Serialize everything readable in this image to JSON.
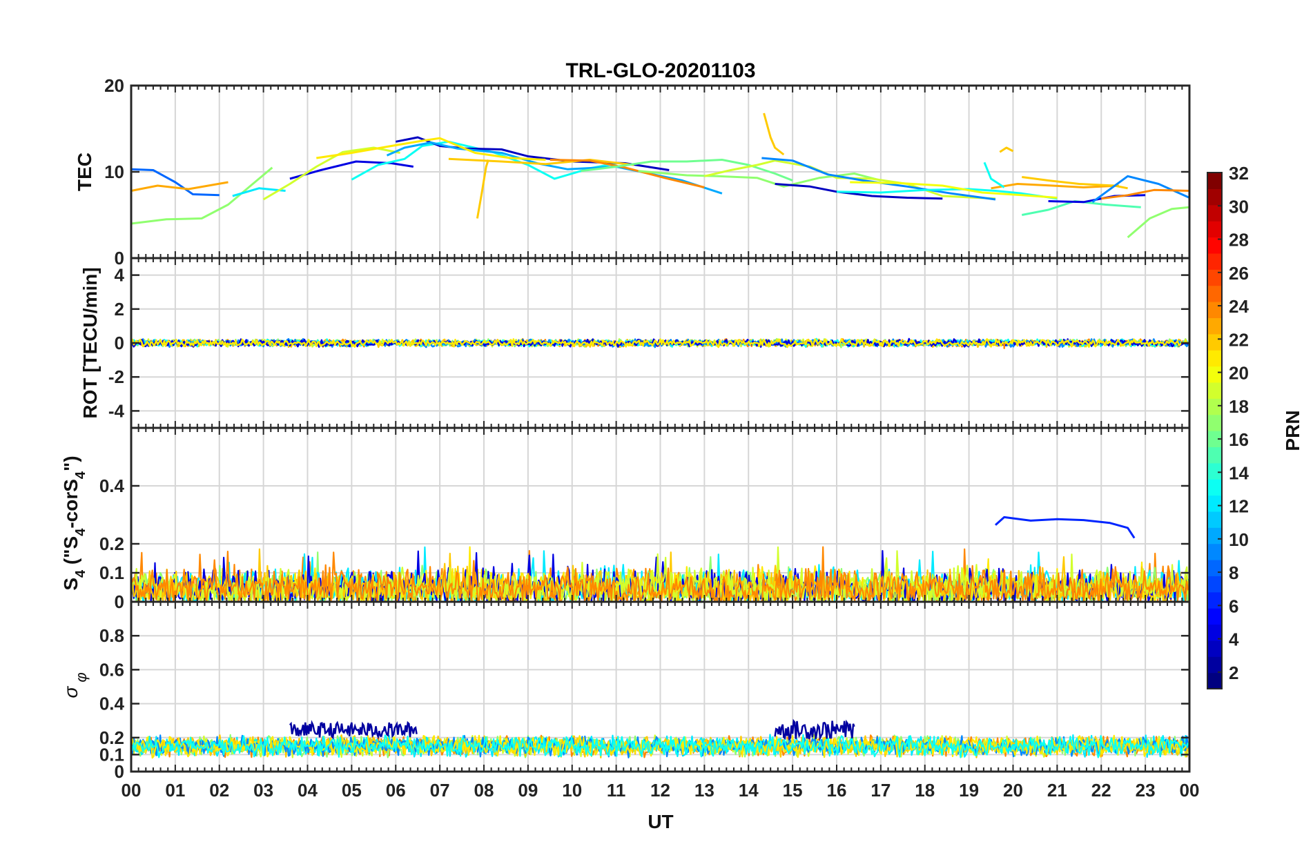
{
  "chart_data": {
    "type": "line",
    "title": "TRL-GLO-20201103",
    "xlabel": "UT",
    "xticks": [
      "00",
      "01",
      "02",
      "03",
      "04",
      "05",
      "06",
      "07",
      "08",
      "09",
      "10",
      "11",
      "12",
      "13",
      "14",
      "15",
      "16",
      "17",
      "18",
      "19",
      "20",
      "21",
      "22",
      "23",
      "00"
    ],
    "xlim": [
      0,
      24
    ],
    "colorbar": {
      "label": "PRN",
      "range": [
        1,
        32
      ],
      "ticks": [
        "2",
        "4",
        "6",
        "8",
        "10",
        "12",
        "14",
        "16",
        "18",
        "20",
        "22",
        "24",
        "26",
        "28",
        "30",
        "32"
      ]
    },
    "panels": [
      {
        "name": "tec",
        "ylabel": "TEC",
        "ylim": [
          0,
          20
        ],
        "ytick_values": [
          0,
          10,
          20
        ],
        "ytick_labels": [
          "0",
          "10",
          "20"
        ],
        "series": [
          {
            "prn": 8,
            "points": [
              [
                0.0,
                10.3
              ],
              [
                0.5,
                10.2
              ],
              [
                1.0,
                8.8
              ],
              [
                1.4,
                7.4
              ],
              [
                2.0,
                7.3
              ]
            ]
          },
          {
            "prn": 23,
            "points": [
              [
                0.0,
                7.8
              ],
              [
                0.6,
                8.4
              ],
              [
                1.3,
                8.0
              ],
              [
                2.2,
                8.8
              ]
            ]
          },
          {
            "prn": 17,
            "points": [
              [
                0.0,
                4.0
              ],
              [
                0.8,
                4.5
              ],
              [
                1.6,
                4.6
              ],
              [
                2.2,
                6.2
              ],
              [
                3.2,
                10.5
              ]
            ]
          },
          {
            "prn": 12,
            "points": [
              [
                2.3,
                7.2
              ],
              [
                2.9,
                8.1
              ],
              [
                3.5,
                7.8
              ]
            ]
          },
          {
            "prn": 4,
            "points": [
              [
                3.6,
                9.2
              ],
              [
                4.3,
                10.2
              ],
              [
                5.1,
                11.2
              ],
              [
                5.9,
                11.0
              ],
              [
                6.4,
                10.6
              ]
            ]
          },
          {
            "prn": 19,
            "points": [
              [
                3.0,
                6.8
              ],
              [
                3.6,
                8.6
              ],
              [
                4.2,
                10.6
              ],
              [
                4.8,
                12.3
              ],
              [
                5.5,
                12.8
              ],
              [
                6.1,
                12.2
              ]
            ]
          },
          {
            "prn": 13,
            "points": [
              [
                5.0,
                9.1
              ],
              [
                5.6,
                10.8
              ],
              [
                6.2,
                11.5
              ],
              [
                6.6,
                13.0
              ],
              [
                7.2,
                13.5
              ],
              [
                8.2,
                12.3
              ],
              [
                9.0,
                10.8
              ],
              [
                9.6,
                9.2
              ],
              [
                10.4,
                10.4
              ],
              [
                11.0,
                11.0
              ]
            ]
          },
          {
            "prn": 3,
            "points": [
              [
                6.0,
                13.5
              ],
              [
                6.5,
                14.0
              ],
              [
                7.0,
                13.0
              ],
              [
                7.6,
                12.7
              ],
              [
                8.4,
                12.6
              ],
              [
                9.0,
                11.8
              ],
              [
                10.0,
                11.2
              ],
              [
                11.2,
                11.0
              ],
              [
                12.2,
                10.2
              ]
            ]
          },
          {
            "prn": 10,
            "points": [
              [
                5.8,
                11.9
              ],
              [
                6.2,
                12.8
              ],
              [
                6.8,
                13.4
              ],
              [
                7.4,
                12.7
              ],
              [
                8.4,
                12.2
              ],
              [
                9.2,
                11.0
              ],
              [
                9.9,
                10.3
              ],
              [
                11.0,
                10.6
              ],
              [
                12.5,
                9.0
              ],
              [
                13.4,
                7.5
              ]
            ]
          },
          {
            "prn": 21,
            "points": [
              [
                4.2,
                11.6
              ],
              [
                5.0,
                12.2
              ],
              [
                5.9,
                13.0
              ],
              [
                6.6,
                13.6
              ],
              [
                7.0,
                13.9
              ],
              [
                7.8,
                12.2
              ],
              [
                8.6,
                11.6
              ],
              [
                9.4,
                11.4
              ]
            ]
          },
          {
            "prn": 22,
            "points": [
              [
                7.2,
                11.5
              ],
              [
                8.4,
                11.2
              ],
              [
                9.4,
                10.9
              ],
              [
                10.4,
                11.4
              ],
              [
                11.4,
                10.8
              ]
            ]
          },
          {
            "prn": 24,
            "points": [
              [
                9.5,
                11.4
              ],
              [
                10.4,
                11.3
              ],
              [
                11.2,
                10.5
              ],
              [
                12.1,
                9.3
              ],
              [
                13.0,
                8.2
              ]
            ]
          },
          {
            "prn": 16,
            "points": [
              [
                10.2,
                10.1
              ],
              [
                11.0,
                10.6
              ],
              [
                11.8,
                11.2
              ],
              [
                12.6,
                11.2
              ],
              [
                13.4,
                11.4
              ],
              [
                14.0,
                10.8
              ],
              [
                14.6,
                9.8
              ],
              [
                15.0,
                9.0
              ]
            ]
          },
          {
            "prn": 17,
            "points": [
              [
                11.5,
                10.1
              ],
              [
                12.6,
                9.6
              ],
              [
                13.3,
                9.5
              ],
              [
                14.2,
                9.3
              ],
              [
                14.8,
                8.3
              ],
              [
                15.6,
                9.3
              ],
              [
                16.4,
                9.8
              ],
              [
                17.0,
                9.0
              ]
            ]
          },
          {
            "prn": 19,
            "points": [
              [
                13.0,
                9.5
              ],
              [
                13.6,
                10.2
              ],
              [
                14.2,
                10.8
              ],
              [
                14.6,
                11.3
              ],
              [
                15.4,
                10.6
              ],
              [
                16.0,
                9.3
              ],
              [
                16.8,
                9.2
              ],
              [
                17.6,
                8.6
              ],
              [
                18.4,
                7.2
              ],
              [
                19.6,
                6.9
              ]
            ]
          },
          {
            "prn": 9,
            "points": [
              [
                14.3,
                11.6
              ],
              [
                15.0,
                11.3
              ],
              [
                15.8,
                9.7
              ],
              [
                16.6,
                9.0
              ],
              [
                17.6,
                8.3
              ],
              [
                18.6,
                7.5
              ],
              [
                19.6,
                6.8
              ]
            ]
          },
          {
            "prn": 3,
            "points": [
              [
                14.6,
                8.6
              ],
              [
                15.4,
                8.3
              ],
              [
                16.0,
                7.7
              ],
              [
                16.8,
                7.2
              ],
              [
                17.6,
                7.0
              ],
              [
                18.4,
                6.9
              ]
            ]
          },
          {
            "prn": 13,
            "points": [
              [
                16.0,
                7.7
              ],
              [
                17.0,
                7.6
              ],
              [
                18.0,
                7.9
              ],
              [
                19.0,
                8.0
              ],
              [
                19.6,
                7.8
              ],
              [
                20.2,
                7.5
              ],
              [
                21.0,
                6.9
              ]
            ]
          },
          {
            "prn": 20,
            "points": [
              [
                16.3,
                8.8
              ],
              [
                17.4,
                8.7
              ],
              [
                18.4,
                8.4
              ],
              [
                19.3,
                7.6
              ],
              [
                20.2,
                7.3
              ],
              [
                21.0,
                7.0
              ]
            ]
          },
          {
            "prn": 23,
            "points": [
              [
                19.5,
                8.1
              ],
              [
                20.1,
                8.6
              ],
              [
                20.9,
                8.4
              ],
              [
                21.6,
                8.2
              ],
              [
                22.4,
                8.4
              ]
            ]
          },
          {
            "prn": 22,
            "points": [
              [
                20.2,
                9.4
              ],
              [
                20.8,
                9.0
              ],
              [
                21.5,
                8.6
              ],
              [
                22.3,
                8.4
              ],
              [
                22.6,
                8.1
              ]
            ]
          },
          {
            "prn": 15,
            "points": [
              [
                20.2,
                5.0
              ],
              [
                20.8,
                5.6
              ],
              [
                21.4,
                6.6
              ],
              [
                22.1,
                6.2
              ],
              [
                22.9,
                5.9
              ]
            ]
          },
          {
            "prn": 4,
            "points": [
              [
                20.8,
                6.6
              ],
              [
                21.6,
                6.5
              ],
              [
                22.3,
                7.2
              ],
              [
                23.0,
                7.3
              ]
            ]
          },
          {
            "prn": 9,
            "points": [
              [
                21.8,
                6.5
              ],
              [
                22.6,
                9.5
              ],
              [
                23.3,
                8.6
              ],
              [
                24.0,
                7.0
              ]
            ]
          },
          {
            "prn": 24,
            "points": [
              [
                22.0,
                6.9
              ],
              [
                22.6,
                7.3
              ],
              [
                23.2,
                7.9
              ],
              [
                24.0,
                7.8
              ]
            ]
          },
          {
            "prn": 17,
            "points": [
              [
                22.6,
                2.4
              ],
              [
                23.1,
                4.6
              ],
              [
                23.6,
                5.7
              ],
              [
                24.0,
                5.9
              ]
            ]
          },
          {
            "prn": 22,
            "points": [
              [
                7.85,
                4.6
              ],
              [
                7.95,
                7.5
              ],
              [
                8.05,
                10.6
              ],
              [
                8.1,
                11.4
              ]
            ]
          },
          {
            "prn": 22,
            "points": [
              [
                14.35,
                16.8
              ],
              [
                14.5,
                14.0
              ],
              [
                14.6,
                12.8
              ],
              [
                14.8,
                12.0
              ]
            ]
          },
          {
            "prn": 22,
            "points": [
              [
                19.7,
                12.3
              ],
              [
                19.85,
                12.8
              ],
              [
                20.0,
                12.4
              ]
            ]
          },
          {
            "prn": 13,
            "points": [
              [
                19.35,
                11.1
              ],
              [
                19.5,
                9.2
              ],
              [
                19.8,
                8.2
              ]
            ]
          }
        ]
      },
      {
        "name": "rot",
        "ylabel": "ROT [TECU/min]",
        "ylim": [
          -5,
          5
        ],
        "ytick_values": [
          -4,
          -2,
          0,
          2,
          4
        ],
        "ytick_labels": [
          "-4",
          "-2",
          "0",
          "2",
          "4"
        ],
        "noise": {
          "center": 0,
          "amplitude": 0.18,
          "spikes": [
            [
              19.8,
              -0.35
            ],
            [
              5.7,
              0.25
            ],
            [
              16.1,
              -0.3
            ]
          ]
        },
        "prn_cycle": [
          24,
          19,
          17,
          22,
          13,
          9,
          4,
          21
        ]
      },
      {
        "name": "s4",
        "ylabel": "S4 (\"S4-corS4\")",
        "ylim": [
          0,
          0.6
        ],
        "ytick_values": [
          0,
          0.1,
          0.2,
          0.4
        ],
        "ytick_labels": [
          "0",
          "0.1",
          "0.2",
          "0.4"
        ],
        "noise": {
          "center": 0.045,
          "amplitude": 0.06,
          "max_spike": 0.19
        },
        "prn_cycle": [
          24,
          17,
          12,
          21,
          4,
          22,
          19,
          24
        ],
        "series": [
          {
            "prn": 6,
            "points": [
              [
                19.6,
                0.265
              ],
              [
                19.8,
                0.292
              ],
              [
                20.4,
                0.28
              ],
              [
                21.0,
                0.285
              ],
              [
                21.6,
                0.282
              ],
              [
                22.2,
                0.272
              ],
              [
                22.6,
                0.255
              ],
              [
                22.75,
                0.22
              ]
            ]
          }
        ]
      },
      {
        "name": "sigma_phi",
        "ylabel": "σ φ",
        "ylim": [
          0,
          1
        ],
        "ytick_values": [
          0,
          0.1,
          0.2,
          0.4,
          0.6,
          0.8
        ],
        "ytick_labels": [
          "0",
          "0.1",
          "0.2",
          "0.4",
          "0.6",
          "0.8"
        ],
        "noise": {
          "center": 0.15,
          "amplitude": 0.05
        },
        "prn_cycle": [
          24,
          17,
          19,
          12,
          22,
          9,
          21,
          13
        ],
        "bursts": [
          {
            "prn": 2,
            "t0": 3.6,
            "t1": 6.5,
            "base": 0.2,
            "peak": 0.29
          },
          {
            "prn": 2,
            "t0": 14.6,
            "t1": 16.4,
            "base": 0.19,
            "peak": 0.3
          }
        ]
      }
    ]
  }
}
